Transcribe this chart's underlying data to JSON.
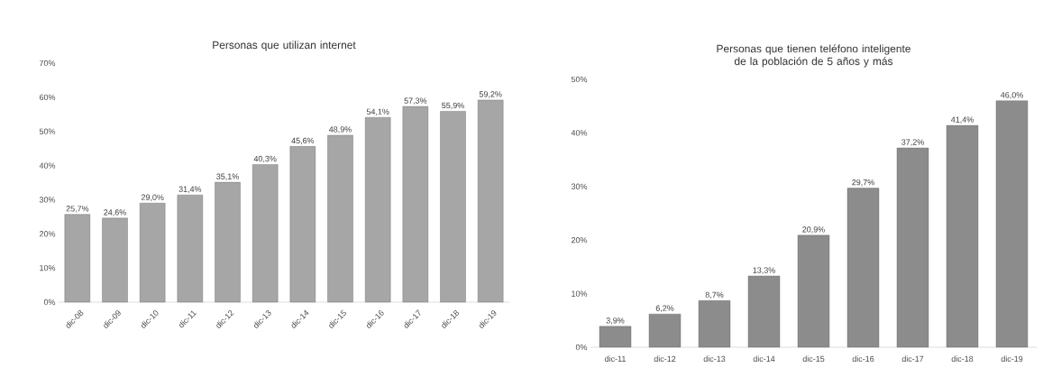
{
  "chart_data": [
    {
      "type": "bar",
      "title": "Personas que utilizan internet",
      "categories": [
        "dic-08",
        "dic-09",
        "dic-10",
        "dic-11",
        "dic-12",
        "dic-13",
        "dic-14",
        "dic-15",
        "dic-16",
        "dic-17",
        "dic-18",
        "dic-19"
      ],
      "values": [
        25.7,
        24.6,
        29.0,
        31.4,
        35.1,
        40.3,
        45.6,
        48.9,
        54.1,
        57.3,
        55.9,
        59.2
      ],
      "value_labels": [
        "25,7%",
        "24,6%",
        "29,0%",
        "31,4%",
        "35,1%",
        "40,3%",
        "45,6%",
        "48,9%",
        "54,1%",
        "57,3%",
        "55,9%",
        "59,2%"
      ],
      "color": "#a6a6a6",
      "ylim": [
        0,
        70
      ],
      "yticks": [
        {
          "value": 0,
          "label": "0%"
        },
        {
          "value": 10,
          "label": "10%"
        },
        {
          "value": 20,
          "label": "20%"
        },
        {
          "value": 30,
          "label": "30%"
        },
        {
          "value": 40,
          "label": "40%"
        },
        {
          "value": 50,
          "label": "50%"
        },
        {
          "value": 60,
          "label": "60%"
        },
        {
          "value": 70,
          "label": "70%"
        }
      ]
    },
    {
      "type": "bar",
      "title": "Personas que tienen teléfono inteligente de la población de 5 años y más",
      "categories": [
        "dic-11",
        "dic-12",
        "dic-13",
        "dic-14",
        "dic-15",
        "dic-16",
        "dic-17",
        "dic-18",
        "dic-19"
      ],
      "values": [
        3.9,
        6.2,
        8.7,
        13.3,
        20.9,
        29.7,
        37.2,
        41.4,
        46.0
      ],
      "value_labels": [
        "3,9%",
        "6,2%",
        "8,7%",
        "13,3%",
        "20,9%",
        "29,7%",
        "37,2%",
        "41,4%",
        "46,0%"
      ],
      "color": "#8c8c8c",
      "ylim": [
        0,
        50
      ],
      "yticks": [
        {
          "value": 0,
          "label": "0%"
        },
        {
          "value": 10,
          "label": "10%"
        },
        {
          "value": 20,
          "label": "20%"
        },
        {
          "value": 30,
          "label": "30%"
        },
        {
          "value": 40,
          "label": "40%"
        },
        {
          "value": 50,
          "label": "50%"
        }
      ]
    }
  ]
}
